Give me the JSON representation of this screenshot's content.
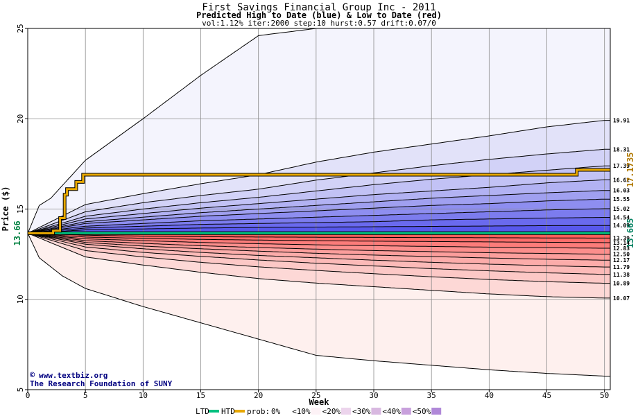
{
  "chart_data": {
    "type": "area",
    "title": "First Savings Financial Group Inc - 2011",
    "subtitle": "Predicted High to Date (blue) &  Low to Date (red)",
    "params": "vol:1.12% iter:2000 step:10 hurst:0.57 drift:0.07/0",
    "xlabel": "Week",
    "ylabel": "Price ($)",
    "xlim": [
      0,
      50.5
    ],
    "ylim": [
      5,
      25
    ],
    "xticks": [
      0,
      5,
      10,
      15,
      20,
      25,
      30,
      35,
      40,
      45,
      50
    ],
    "yticks": [
      5,
      10,
      15,
      20,
      25
    ],
    "start_value": 13.66,
    "start_label": "13.66",
    "high_labels": [
      "19.91",
      "18.31",
      "17.39",
      "16.62",
      "16.03",
      "15.55",
      "15.02",
      "14.54",
      "14.09"
    ],
    "low_labels": [
      "13.39",
      "13.14",
      "12.83",
      "12.50",
      "12.17",
      "11.79",
      "11.38",
      "10.89",
      "10.07"
    ],
    "high_quantiles": [
      {
        "prob": 0.0,
        "x": [
          0,
          1,
          2,
          3,
          5,
          10,
          15,
          20,
          25,
          30,
          35,
          40,
          45,
          50
        ],
        "y": [
          13.66,
          15.2,
          15.6,
          16.3,
          17.7,
          20.0,
          22.4,
          24.6,
          25.0,
          25.0,
          25.0,
          25.0,
          25.0,
          25.0
        ]
      },
      {
        "prob": 0.05,
        "x": [
          0,
          5,
          10,
          15,
          20,
          25,
          30,
          35,
          40,
          45,
          50
        ],
        "y": [
          13.66,
          15.25,
          15.85,
          16.4,
          16.9,
          17.6,
          18.15,
          18.6,
          19.05,
          19.55,
          19.91
        ]
      },
      {
        "prob": 0.1,
        "x": [
          0,
          5,
          10,
          15,
          20,
          25,
          30,
          35,
          40,
          45,
          50
        ],
        "y": [
          13.66,
          14.85,
          15.35,
          15.75,
          16.1,
          16.6,
          17.0,
          17.4,
          17.75,
          18.05,
          18.31
        ]
      },
      {
        "prob": 0.15,
        "x": [
          0,
          5,
          10,
          15,
          20,
          25,
          30,
          35,
          40,
          45,
          50
        ],
        "y": [
          13.66,
          14.6,
          15.0,
          15.35,
          15.65,
          16.0,
          16.35,
          16.65,
          16.9,
          17.15,
          17.39
        ]
      },
      {
        "prob": 0.2,
        "x": [
          0,
          5,
          10,
          15,
          20,
          25,
          30,
          35,
          40,
          45,
          50
        ],
        "y": [
          13.66,
          14.45,
          14.75,
          15.05,
          15.3,
          15.55,
          15.8,
          16.0,
          16.2,
          16.45,
          16.62
        ]
      },
      {
        "prob": 0.25,
        "x": [
          0,
          5,
          10,
          15,
          20,
          25,
          30,
          35,
          40,
          45,
          50
        ],
        "y": [
          13.66,
          14.3,
          14.55,
          14.8,
          15.0,
          15.2,
          15.4,
          15.6,
          15.75,
          15.9,
          16.03
        ]
      },
      {
        "prob": 0.3,
        "x": [
          0,
          5,
          10,
          15,
          20,
          25,
          30,
          35,
          40,
          45,
          50
        ],
        "y": [
          13.66,
          14.2,
          14.4,
          14.6,
          14.75,
          14.9,
          15.05,
          15.2,
          15.3,
          15.45,
          15.55
        ]
      },
      {
        "prob": 0.35,
        "x": [
          0,
          5,
          10,
          15,
          20,
          25,
          30,
          35,
          40,
          45,
          50
        ],
        "y": [
          13.66,
          14.05,
          14.2,
          14.35,
          14.45,
          14.55,
          14.65,
          14.75,
          14.85,
          14.95,
          15.02
        ]
      },
      {
        "prob": 0.4,
        "x": [
          0,
          5,
          10,
          15,
          20,
          25,
          30,
          35,
          40,
          45,
          50
        ],
        "y": [
          13.66,
          13.95,
          14.05,
          14.15,
          14.2,
          14.25,
          14.3,
          14.4,
          14.45,
          14.5,
          14.54
        ]
      },
      {
        "prob": 0.45,
        "x": [
          0,
          5,
          10,
          15,
          20,
          25,
          30,
          35,
          40,
          45,
          50
        ],
        "y": [
          13.66,
          13.85,
          13.9,
          13.95,
          13.98,
          14.0,
          14.02,
          14.04,
          14.06,
          14.08,
          14.09
        ]
      }
    ],
    "low_quantiles": [
      {
        "prob": 0.45,
        "x": [
          0,
          5,
          10,
          15,
          20,
          25,
          30,
          35,
          40,
          45,
          50
        ],
        "y": [
          13.66,
          13.55,
          13.5,
          13.47,
          13.45,
          13.44,
          13.43,
          13.42,
          13.41,
          13.4,
          13.39
        ]
      },
      {
        "prob": 0.4,
        "x": [
          0,
          5,
          10,
          15,
          20,
          25,
          30,
          35,
          40,
          45,
          50
        ],
        "y": [
          13.66,
          13.45,
          13.38,
          13.32,
          13.28,
          13.25,
          13.22,
          13.2,
          13.18,
          13.16,
          13.14
        ]
      },
      {
        "prob": 0.35,
        "x": [
          0,
          5,
          10,
          15,
          20,
          25,
          30,
          35,
          40,
          45,
          50
        ],
        "y": [
          13.66,
          13.35,
          13.25,
          13.15,
          13.08,
          13.02,
          12.97,
          12.93,
          12.89,
          12.86,
          12.83
        ]
      },
      {
        "prob": 0.3,
        "x": [
          0,
          5,
          10,
          15,
          20,
          25,
          30,
          35,
          40,
          45,
          50
        ],
        "y": [
          13.66,
          13.25,
          13.1,
          12.97,
          12.87,
          12.78,
          12.7,
          12.64,
          12.58,
          12.54,
          12.5
        ]
      },
      {
        "prob": 0.25,
        "x": [
          0,
          5,
          10,
          15,
          20,
          25,
          30,
          35,
          40,
          45,
          50
        ],
        "y": [
          13.66,
          13.15,
          12.95,
          12.8,
          12.67,
          12.55,
          12.45,
          12.37,
          12.29,
          12.22,
          12.17
        ]
      },
      {
        "prob": 0.2,
        "x": [
          0,
          5,
          10,
          15,
          20,
          25,
          30,
          35,
          40,
          45,
          50
        ],
        "y": [
          13.66,
          13.05,
          12.8,
          12.6,
          12.43,
          12.3,
          12.17,
          12.05,
          11.95,
          11.86,
          11.79
        ]
      },
      {
        "prob": 0.15,
        "x": [
          0,
          5,
          10,
          15,
          20,
          25,
          30,
          35,
          40,
          45,
          50
        ],
        "y": [
          13.66,
          12.9,
          12.6,
          12.38,
          12.18,
          12.0,
          11.85,
          11.7,
          11.58,
          11.47,
          11.38
        ]
      },
      {
        "prob": 0.1,
        "x": [
          0,
          5,
          10,
          15,
          20,
          25,
          30,
          35,
          40,
          45,
          50
        ],
        "y": [
          13.66,
          12.7,
          12.35,
          12.05,
          11.8,
          11.6,
          11.42,
          11.25,
          11.1,
          10.98,
          10.89
        ]
      },
      {
        "prob": 0.05,
        "x": [
          0,
          5,
          10,
          15,
          20,
          25,
          30,
          35,
          40,
          45,
          50
        ],
        "y": [
          13.66,
          12.35,
          11.9,
          11.5,
          11.15,
          10.9,
          10.7,
          10.5,
          10.3,
          10.15,
          10.07
        ]
      },
      {
        "prob": 0.0,
        "x": [
          0,
          1,
          2,
          3,
          5,
          10,
          15,
          20,
          25,
          30,
          35,
          40,
          45,
          50
        ],
        "y": [
          13.66,
          12.3,
          11.8,
          11.3,
          10.6,
          9.6,
          8.7,
          7.8,
          6.9,
          6.6,
          6.35,
          6.1,
          5.9,
          5.75
        ]
      }
    ],
    "htd_actual": {
      "name": "HTD",
      "label": "17.1735",
      "x": [
        0,
        1.5,
        2.2,
        2.8,
        3.2,
        3.4,
        4.0,
        4.2,
        4.6,
        4.8,
        5.0,
        47.5,
        47.6,
        50.5
      ],
      "y": [
        13.66,
        13.66,
        13.8,
        14.5,
        15.8,
        16.1,
        16.1,
        16.5,
        16.5,
        16.9,
        16.9,
        16.9,
        17.17,
        17.17
      ]
    },
    "ltd_actual": {
      "name": "LTD",
      "label": "13.665",
      "x": [
        0,
        50.5
      ],
      "y": [
        13.665,
        13.665
      ]
    },
    "watermark": {
      "symbol": "©",
      "line1": "www.textbiz.org",
      "line2": "The Research Foundation of SUNY"
    },
    "legend": {
      "placement": "bottom",
      "ltd": "LTD",
      "htd": "HTD",
      "prob_prefix": "prob:",
      "items": [
        "0%",
        "<10%",
        "<20%",
        "<30%",
        "<40%",
        "<50%"
      ]
    },
    "colors": {
      "blue_bands": [
        "#f4f4fd",
        "#e2e2f9",
        "#d2d2f7",
        "#c2c2f5",
        "#b2b2f3",
        "#a0a0f0",
        "#8e8ef0",
        "#7c7cee",
        "#6a6aee",
        "#5858ec"
      ],
      "red_bands": [
        "#fef0ee",
        "#fdd8d6",
        "#fcc8c6",
        "#fcbab8",
        "#fcacaa",
        "#fc9e9c",
        "#fc8e8c",
        "#fc7c7a",
        "#fc6c6a",
        "#fc5c5a"
      ],
      "htd": "#e8a800",
      "ltd": "#00c080",
      "start_label": "#008040",
      "htd_label": "#b07800",
      "ltd_label": "#008060",
      "watermark": "#000080",
      "legend_swatches": [
        "#ffffff",
        "#fdf2f6",
        "#ecd4ec",
        "#d8b8e0",
        "#c8a0dc",
        "#b088d8"
      ]
    }
  }
}
